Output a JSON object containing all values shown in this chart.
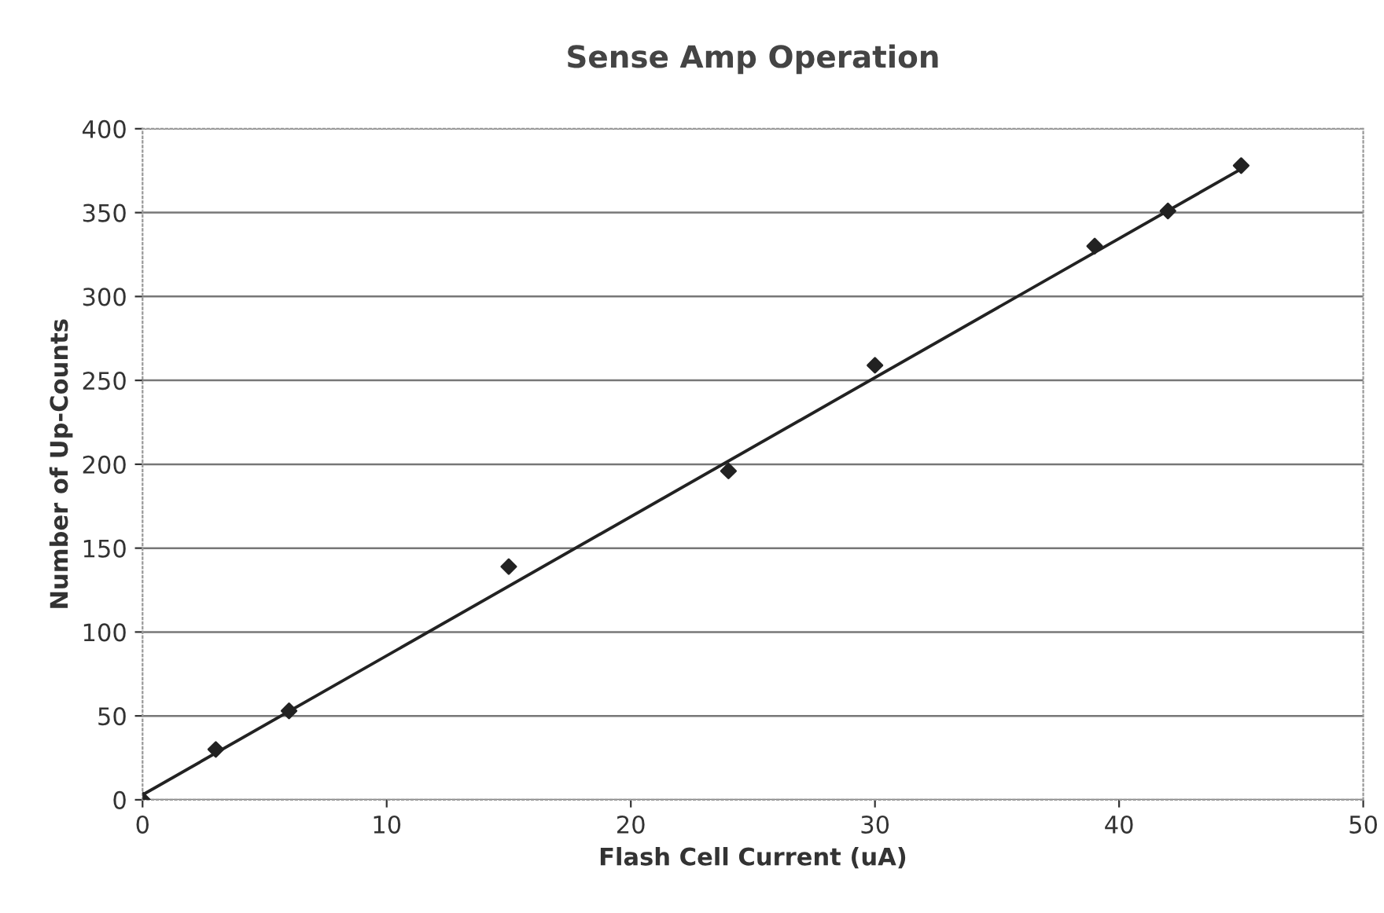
{
  "chart_data": {
    "type": "scatter",
    "title": "Sense Amp Operation",
    "xlabel": "Flash Cell Current (uA)",
    "ylabel": "Number of Up-Counts",
    "series": [
      {
        "color": "#222222",
        "marker": "diamond",
        "x": [
          0,
          3,
          6,
          15,
          24,
          30,
          39,
          42,
          45
        ],
        "values": [
          0,
          30,
          53,
          139,
          196,
          259,
          330,
          351,
          378
        ]
      },
      {
        "type": "line",
        "color": "#222222",
        "marker": "none",
        "line_style": "solid",
        "x": [
          0,
          45
        ],
        "values": [
          3,
          376
        ]
      }
    ],
    "xlim": [
      0,
      50
    ],
    "xticks": [
      0,
      10,
      20,
      30,
      40,
      50
    ],
    "ylim": [
      0,
      400
    ],
    "yticks": [
      0,
      50,
      100,
      150,
      200,
      250,
      300,
      350,
      400
    ],
    "grid": "y",
    "legend": false
  }
}
